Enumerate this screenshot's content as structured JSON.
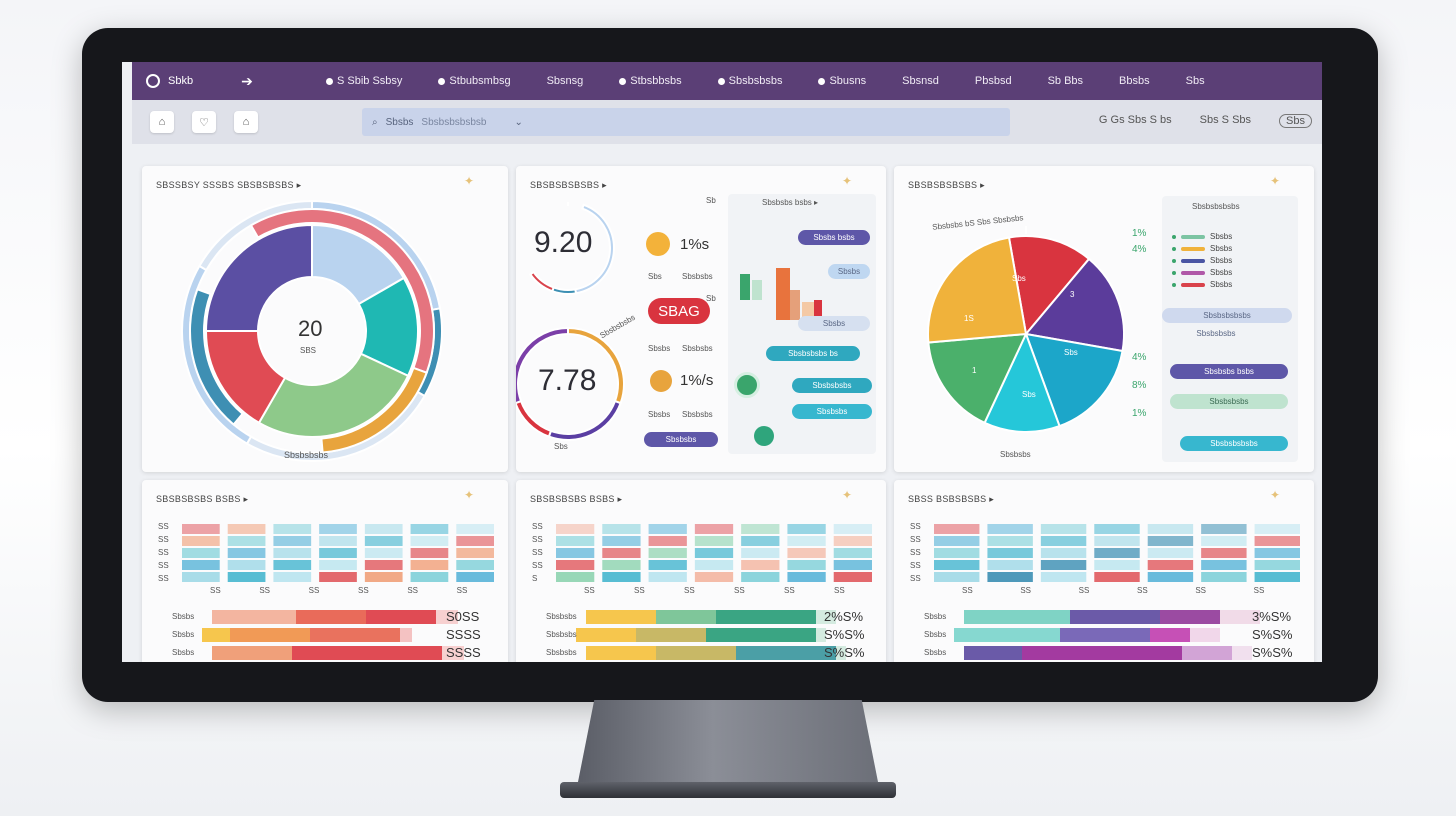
{
  "nav": {
    "brand": "Sbkb",
    "items": [
      {
        "label": "S Sbib Ssbsy",
        "icon": "dot-icon"
      },
      {
        "label": "Stbubsmbsg",
        "icon": "dot-icon"
      },
      {
        "label": "Sbsnsg",
        "icon": "none"
      },
      {
        "label": "Stbsbbsbs",
        "icon": "dot-icon"
      },
      {
        "label": "Sbsbsbsbs",
        "icon": "dot-icon"
      },
      {
        "label": "Sbusns",
        "icon": "dot-icon"
      },
      {
        "label": "Sbsnsd",
        "icon": "none"
      },
      {
        "label": "Pbsbsd",
        "icon": "none"
      },
      {
        "label": "Sb Bbs",
        "icon": "none"
      },
      {
        "label": "Bbsbs",
        "icon": "none"
      },
      {
        "label": "Sbs",
        "icon": "none"
      }
    ]
  },
  "toolbar": {
    "buttons": [
      "⌂",
      "♡",
      "⌂"
    ],
    "search_text": "Sbsbs",
    "search_hint": "Sbsbsbsbsbsb",
    "right_1": "G  Gs Sbs S  bs",
    "right_2": "Sbs S Sbs",
    "right_3": "Sbs"
  },
  "card1": {
    "title": "SBSSBSY SSSBS SBSBSBSBS ▸",
    "center_value": "20",
    "center_sub": "SBS",
    "footer": "Sbsbsbsbs",
    "colors": [
      "#5b4fa3",
      "#e04b54",
      "#8ec98a",
      "#1fb8b3",
      "#b9d3ef",
      "#e8a43d",
      "#e5747f",
      "#3e8fb3"
    ]
  },
  "card2": {
    "title": "SBSBSBSBSBS ▸",
    "gauge1_value": "9.20",
    "gauge2_value": "7.78",
    "gauge2_label": "Sbs",
    "gauge2_caption": "Sbsbsbsbs",
    "stat1": "1%s",
    "stat1_sub_a": "Sbs",
    "stat1_sub_b": "Sbsbsbs",
    "stat2": "1%/s",
    "stat2_sub_a": "Sbsbs",
    "stat2_sub_b": "Sbsbsbs",
    "pill_main": "SBAG",
    "pill_caption": "Sbsbs",
    "pill_caption_b": "Sbsbsbs",
    "bottom_pill": "Sbsbsbs",
    "panel_title": "Sbsbsbs bsbs ▸",
    "panel_left_1": "Sb",
    "panel_left_2": "Sb",
    "panel_pills": [
      "Sbsbs bsbs",
      "Sbsbs",
      "Sbsbs",
      "Sbsbsbsbs bs",
      "Sbsbsbsbs",
      "Sbsbsbs"
    ]
  },
  "card3": {
    "title": "SBSBSBSBSBS ▸",
    "pie_caption": "Sbsbsbs bS Sbs Sbsbsbs",
    "pie_footer": "Sbsbsbs",
    "legend_header": "Sbsbsbsbsbs",
    "pie_labels": [
      "Sbs",
      "3",
      "Sbs",
      "Sbs",
      "1",
      "1S"
    ],
    "left_pct": [
      "1%",
      "4%",
      "4%",
      "8%",
      "1%"
    ],
    "legend": [
      {
        "label": "Sbsbs",
        "color": "#7cc4a3"
      },
      {
        "label": "Sbsbs",
        "color": "#f0b23b"
      },
      {
        "label": "Sbsbs",
        "color": "#4a55a3"
      },
      {
        "label": "Sbsbs",
        "color": "#b058a8"
      },
      {
        "label": "Sbsbs",
        "color": "#d9434c"
      }
    ],
    "pills": [
      "Sbsbsbsbsbs",
      "Sbsbsbsbs",
      "Sbsbsbs bsbs",
      "Sbsbsbsbs",
      "Sbsbsbsbsbs"
    ],
    "pie_colors": [
      "#d9343f",
      "#5b3c9b",
      "#1ca6c9",
      "#25c7d9",
      "#4bb06b",
      "#f0b23b"
    ]
  },
  "card4": {
    "title": "SBSBSBSBS BSBS ▸",
    "row_labels": [
      "SS",
      "SS",
      "SS",
      "SS",
      "SS"
    ],
    "footer_labels": [
      "SS",
      "SS",
      "SS",
      "SS",
      "SS",
      "SS"
    ],
    "bar_labels": [
      "Sbsbs",
      "Sbsbs",
      "Sbsbs"
    ],
    "pct_values": [
      "S0SS",
      "SSSS",
      "SSSS"
    ]
  },
  "card5": {
    "title": "SBSBSBSBS BSBS ▸",
    "row_labels": [
      "SS",
      "SS",
      "SS",
      "SS",
      "S"
    ],
    "footer_labels": [
      "SS",
      "SS",
      "SS",
      "SS",
      "SS",
      "SS"
    ],
    "bar_labels": [
      "Sbsbsbs",
      "Sbsbsbs",
      "Sbsbsbs"
    ],
    "pct_values": [
      "2%S%",
      "S%S%",
      "S%S%"
    ]
  },
  "card6": {
    "title": "SBSS BSBSBSBS ▸",
    "row_labels": [
      "SS",
      "SS",
      "SS",
      "SS",
      "SS"
    ],
    "footer_labels": [
      "SS",
      "SS",
      "SS",
      "SS",
      "SS",
      "SS"
    ],
    "bar_labels": [
      "Sbsbs",
      "Sbsbs",
      "Sbsbs"
    ],
    "pct_values": [
      "3%S%",
      "S%S%",
      "S%S%"
    ]
  }
}
